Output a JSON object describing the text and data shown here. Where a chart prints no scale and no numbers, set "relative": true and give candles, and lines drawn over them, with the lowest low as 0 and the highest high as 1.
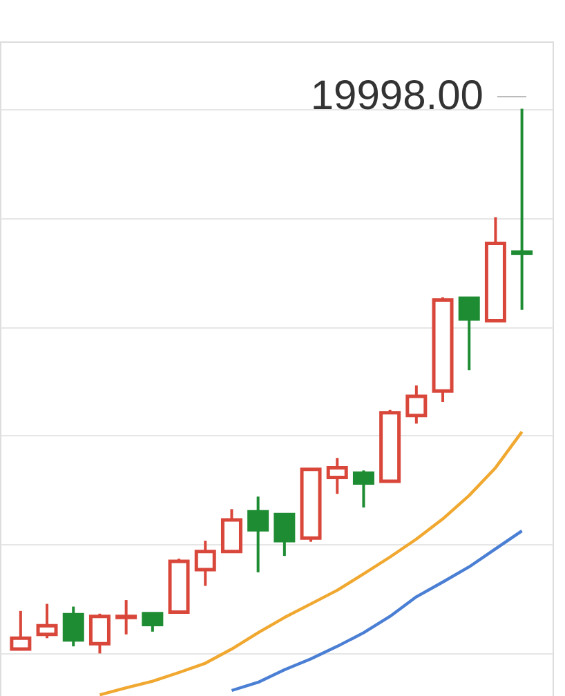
{
  "chart_data": {
    "type": "candlestick",
    "relative": true,
    "grid": "y",
    "categories": [
      null,
      null,
      null,
      null,
      null,
      null,
      null,
      null,
      null,
      null,
      null,
      null,
      null,
      null,
      null,
      null,
      null,
      null,
      null,
      null
    ],
    "ohlc": [
      [
        0.008,
        0.078,
        0.008,
        0.028
      ],
      [
        0.035,
        0.091,
        0.028,
        0.051
      ],
      [
        0.071,
        0.086,
        0.013,
        0.025
      ],
      [
        0.018,
        0.073,
        0,
        0.068
      ],
      [
        0.066,
        0.098,
        0.035,
        0.068
      ],
      [
        0.073,
        0.073,
        0.04,
        0.053
      ],
      [
        0.076,
        0.174,
        0.076,
        0.169
      ],
      [
        0.154,
        0.207,
        0.124,
        0.187
      ],
      [
        0.187,
        0.265,
        0.187,
        0.245
      ],
      [
        0.26,
        0.288,
        0.149,
        0.227
      ],
      [
        0.255,
        0.255,
        0.179,
        0.207
      ],
      [
        0.212,
        0.338,
        0.205,
        0.338
      ],
      [
        0.323,
        0.359,
        0.293,
        0.341
      ],
      [
        0.331,
        0.336,
        0.268,
        0.313
      ],
      [
        0.316,
        0.447,
        0.316,
        0.442
      ],
      [
        0.437,
        0.492,
        0.422,
        0.472
      ],
      [
        0.482,
        0.654,
        0.462,
        0.649
      ],
      [
        0.652,
        0.652,
        0.52,
        0.614
      ],
      [
        0.611,
        0.801,
        0.611,
        0.753
      ],
      [
        0.737,
        1,
        0.631,
        0.735
      ]
    ],
    "colors": [
      "#d9473b",
      "#d9473b",
      "#1e8c32",
      "#d9473b",
      "#d9473b",
      "#1e8c32",
      "#d9473b",
      "#d9473b",
      "#d9473b",
      "#1e8c32",
      "#1e8c32",
      "#d9473b",
      "#d9473b",
      "#1e8c32",
      "#d9473b",
      "#d9473b",
      "#d9473b",
      "#1e8c32",
      "#d9473b",
      "#1e8c32"
    ],
    "series": [
      {
        "type": "line",
        "color": "#f0a830",
        "values": [
          null,
          null,
          null,
          -0.076,
          -0.063,
          -0.051,
          -0.035,
          -0.018,
          0.008,
          0.038,
          0.066,
          0.091,
          0.116,
          0.146,
          0.177,
          0.21,
          0.247,
          0.29,
          0.341,
          0.407
        ]
      },
      {
        "type": "line",
        "color": "#4a7fd4",
        "values": [
          null,
          null,
          null,
          null,
          null,
          null,
          null,
          null,
          -0.068,
          -0.053,
          -0.03,
          -0.01,
          0.013,
          0.038,
          0.068,
          0.104,
          0.131,
          0.159,
          0.192,
          0.225
        ]
      }
    ],
    "annotations": [
      "19998.00"
    ]
  }
}
